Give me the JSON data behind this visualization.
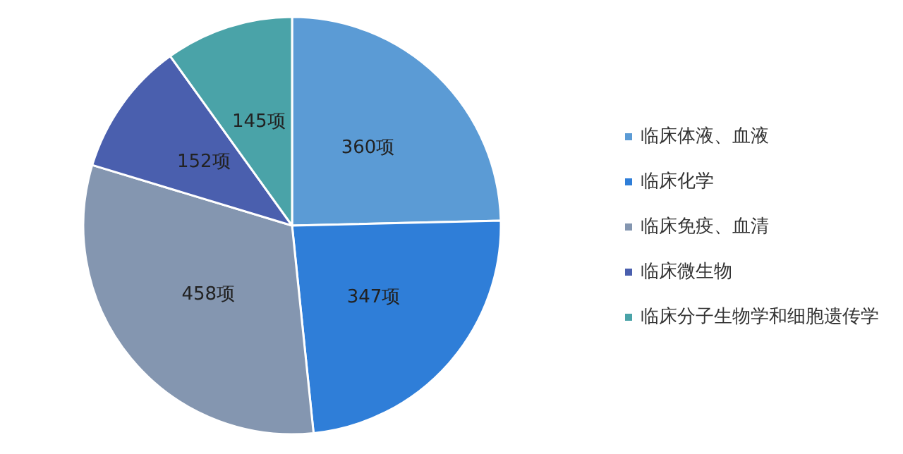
{
  "chart_data": {
    "type": "pie",
    "categories": [
      "临床体液、血液",
      "临床化学",
      "临床免疫、血清",
      "临床微生物",
      "临床分子生物学和细胞遗传学"
    ],
    "values": [
      360,
      347,
      458,
      152,
      145
    ],
    "value_labels": [
      "360项",
      "347项",
      "458项",
      "152项",
      "145项"
    ],
    "colors": [
      "#5b9bd5",
      "#2f7ed8",
      "#8496b0",
      "#4a5fae",
      "#4aa3a8"
    ],
    "legend": "right"
  }
}
